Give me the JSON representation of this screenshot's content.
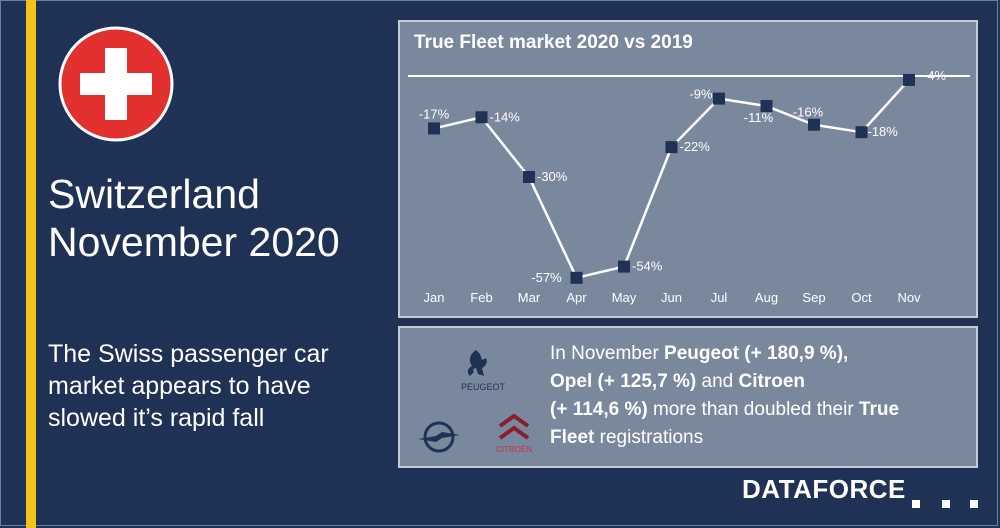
{
  "header": {
    "country": "Switzerland",
    "period": "November 2020",
    "tagline": "The Swiss passenger car market appears to have slowed it’s rapid fall"
  },
  "colors": {
    "background": "#1f3154",
    "accent": "#f2c318",
    "flag_red": "#e2302e",
    "panel": "#7a889e",
    "marker": "#1f3154",
    "line": "#ffffff"
  },
  "chart_data": {
    "type": "line",
    "title": "True Fleet market 2020 vs 2019",
    "categories": [
      "Jan",
      "Feb",
      "Mar",
      "Apr",
      "May",
      "Jun",
      "Jul",
      "Aug",
      "Sep",
      "Oct",
      "Nov"
    ],
    "series": [
      {
        "values": [
          -17,
          -14,
          -30,
          -57,
          -54,
          -22,
          -9,
          -11,
          -16,
          -18,
          -4
        ],
        "labels": [
          "-17%",
          "-14%",
          "-30%",
          "-57%",
          "-54%",
          "-22%",
          "-9%",
          "-11%",
          "-16%",
          "-18%",
          "-4%"
        ]
      }
    ],
    "ylim": [
      -60,
      0
    ],
    "grid": false,
    "legend": "none"
  },
  "info": {
    "part1": "In November ",
    "brand1": "Peugeot (+ 180,9 %),",
    "brand2": "Opel (+ 125,7 %)",
    "part2": " and ",
    "brand3": "Citroen",
    "part3": "(+ 114,6 %)",
    "part4": " more than doubled their ",
    "highlight": "True Fleet",
    "part5": " registrations"
  },
  "logos": {
    "peugeot_text": "PEUGEOT",
    "citroen_text": "CITROËN"
  },
  "brand": {
    "wordmark": "DATAFORCE"
  }
}
